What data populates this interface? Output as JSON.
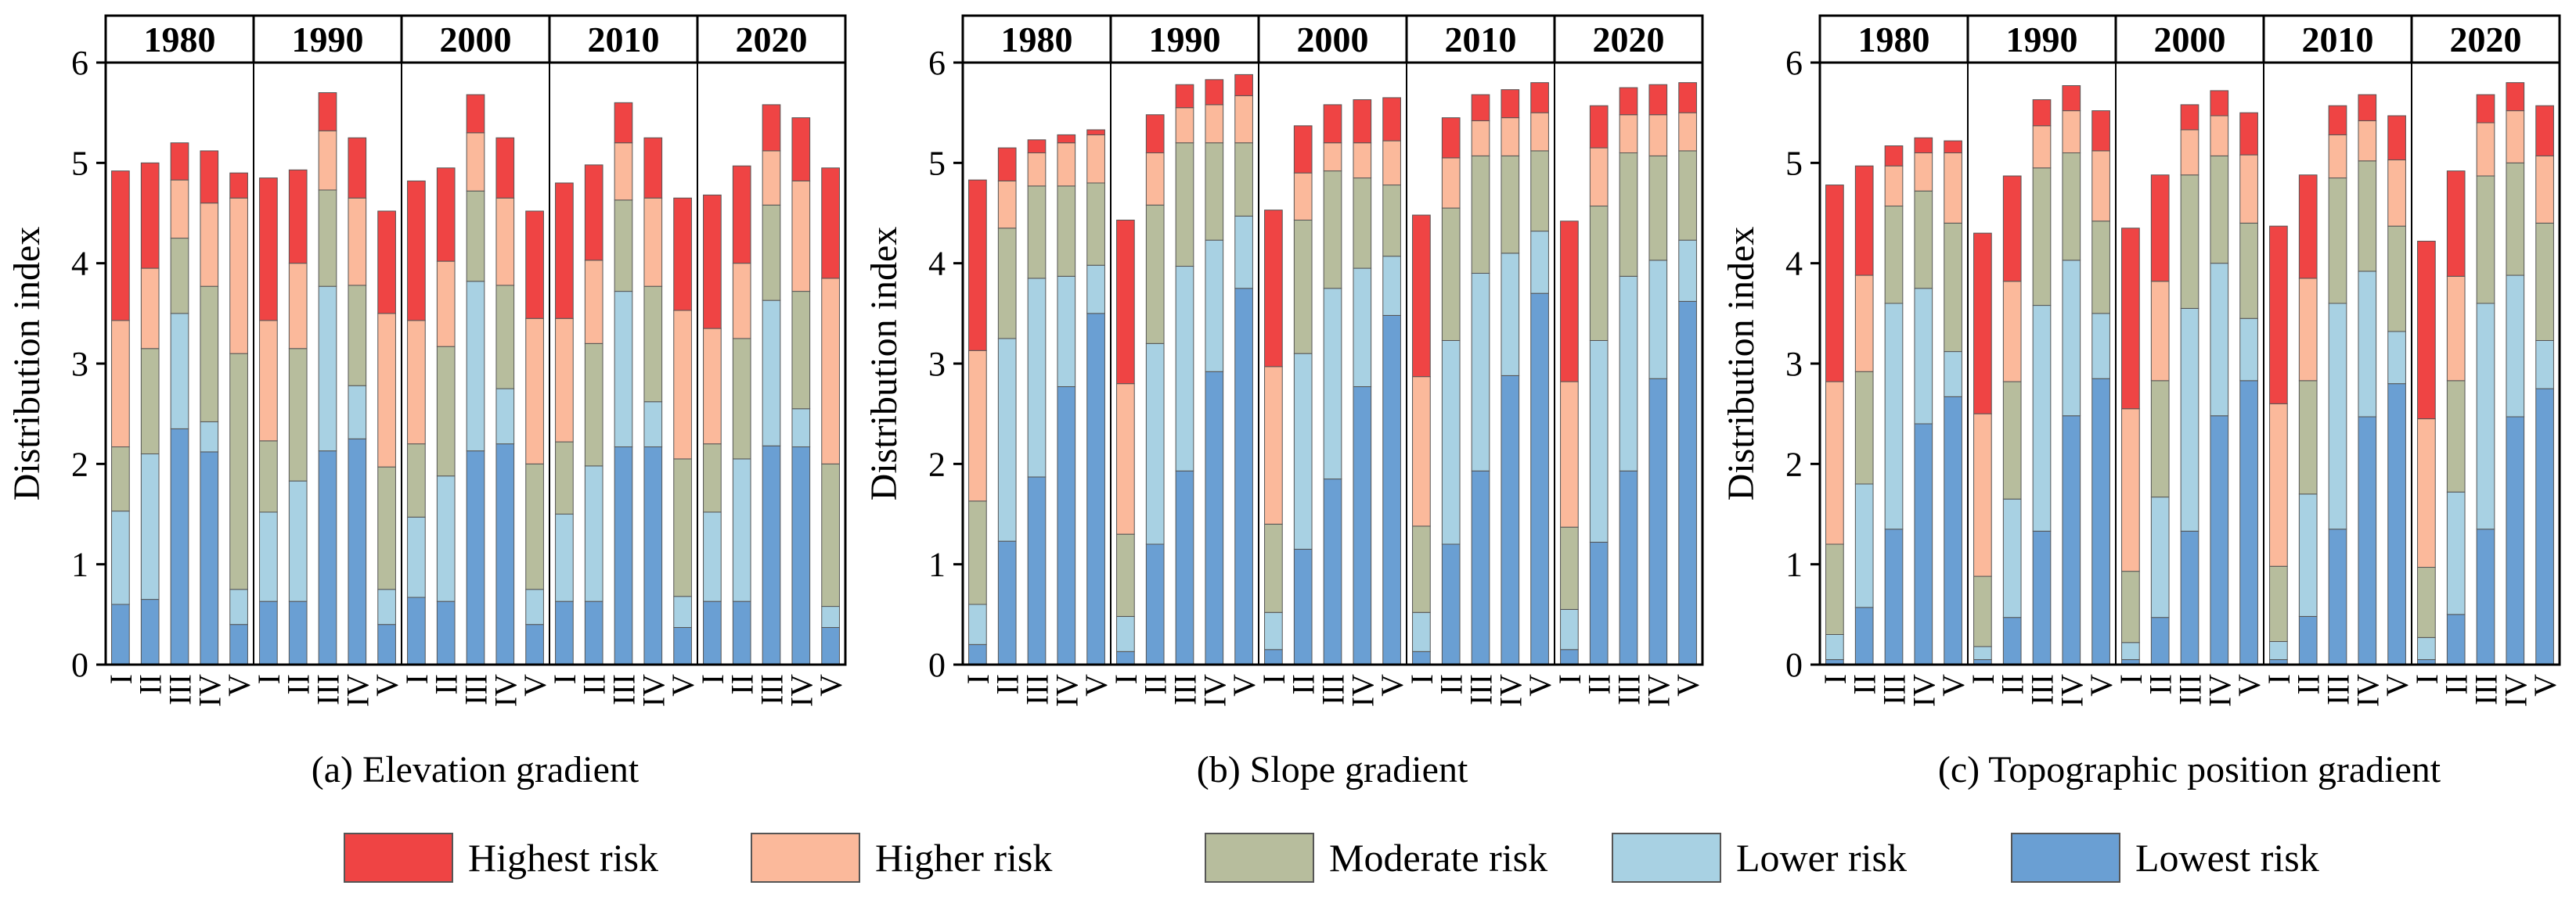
{
  "legend": [
    {
      "key": "highest",
      "label": "Highest risk",
      "color": "#ef4444"
    },
    {
      "key": "higher",
      "label": "Higher risk",
      "color": "#fbb99b"
    },
    {
      "key": "moderate",
      "label": "Moderate risk",
      "color": "#b7bd9d"
    },
    {
      "key": "lower",
      "label": "Lower risk",
      "color": "#a8d1e3"
    },
    {
      "key": "lowest",
      "label": "Lowest risk",
      "color": "#6a9fd3"
    }
  ],
  "chart_data": [
    {
      "type": "bar",
      "stacked": true,
      "caption": "(a) Elevation gradient",
      "ylabel": "Distribution index",
      "ylim": [
        0,
        6
      ],
      "yticks": [
        0,
        1,
        2,
        3,
        4,
        5,
        6
      ],
      "years": [
        "1980",
        "1990",
        "2000",
        "2010",
        "2020"
      ],
      "categories": [
        "I",
        "II",
        "III",
        "IV",
        "V"
      ],
      "series_order": [
        "lowest",
        "lower",
        "moderate",
        "higher",
        "highest"
      ],
      "panels": [
        {
          "year": "1980",
          "totals": [
            4.92,
            5.0,
            5.2,
            5.12,
            4.9
          ],
          "cum": [
            [
              0.6,
              1.53,
              2.17,
              3.43,
              4.92
            ],
            [
              0.65,
              2.1,
              3.15,
              3.95,
              5.0
            ],
            [
              2.35,
              3.5,
              4.25,
              4.83,
              5.2
            ],
            [
              2.12,
              2.42,
              3.77,
              4.6,
              5.12
            ],
            [
              0.4,
              0.75,
              3.1,
              4.65,
              4.9
            ]
          ]
        },
        {
          "year": "1990",
          "totals": [
            4.85,
            4.93,
            5.7,
            5.25,
            4.52
          ],
          "cum": [
            [
              0.63,
              1.52,
              2.23,
              3.43,
              4.85
            ],
            [
              0.63,
              1.83,
              3.15,
              4.0,
              4.93
            ],
            [
              2.13,
              3.77,
              4.73,
              5.32,
              5.7
            ],
            [
              2.25,
              2.78,
              3.78,
              4.65,
              5.25
            ],
            [
              0.4,
              0.75,
              1.97,
              3.5,
              4.52
            ]
          ]
        },
        {
          "year": "2000",
          "totals": [
            4.82,
            4.95,
            5.68,
            5.25,
            4.52
          ],
          "cum": [
            [
              0.67,
              1.47,
              2.2,
              3.43,
              4.82
            ],
            [
              0.63,
              1.88,
              3.17,
              4.02,
              4.95
            ],
            [
              2.13,
              3.82,
              4.72,
              5.3,
              5.68
            ],
            [
              2.2,
              2.75,
              3.78,
              4.65,
              5.25
            ],
            [
              0.4,
              0.75,
              2.0,
              3.45,
              4.52
            ]
          ]
        },
        {
          "year": "2010",
          "totals": [
            4.8,
            4.98,
            5.6,
            5.25,
            4.65
          ],
          "cum": [
            [
              0.63,
              1.5,
              2.22,
              3.45,
              4.8
            ],
            [
              0.63,
              1.98,
              3.2,
              4.03,
              4.98
            ],
            [
              2.17,
              3.72,
              4.63,
              5.2,
              5.6
            ],
            [
              2.17,
              2.62,
              3.77,
              4.65,
              5.25
            ],
            [
              0.37,
              0.68,
              2.05,
              3.53,
              4.65
            ]
          ]
        },
        {
          "year": "2020",
          "totals": [
            4.68,
            4.97,
            5.58,
            5.45,
            4.95
          ],
          "cum": [
            [
              0.63,
              1.52,
              2.2,
              3.35,
              4.68
            ],
            [
              0.63,
              2.05,
              3.25,
              4.0,
              4.97
            ],
            [
              2.18,
              3.63,
              4.58,
              5.12,
              5.58
            ],
            [
              2.17,
              2.55,
              3.72,
              4.82,
              5.45
            ],
            [
              0.37,
              0.58,
              2.0,
              3.85,
              4.95
            ]
          ]
        }
      ]
    },
    {
      "type": "bar",
      "stacked": true,
      "caption": "(b) Slope gradient",
      "ylabel": "Distribution index",
      "ylim": [
        0,
        6
      ],
      "yticks": [
        0,
        1,
        2,
        3,
        4,
        5,
        6
      ],
      "years": [
        "1980",
        "1990",
        "2000",
        "2010",
        "2020"
      ],
      "categories": [
        "I",
        "II",
        "III",
        "IV",
        "V"
      ],
      "series_order": [
        "lowest",
        "lower",
        "moderate",
        "higher",
        "highest"
      ],
      "panels": [
        {
          "year": "1980",
          "totals": [
            4.83,
            5.15,
            5.23,
            5.28,
            5.33
          ],
          "cum": [
            [
              0.2,
              0.6,
              1.63,
              3.13,
              4.83
            ],
            [
              1.23,
              3.25,
              4.35,
              4.82,
              5.15
            ],
            [
              1.87,
              3.85,
              4.77,
              5.1,
              5.23
            ],
            [
              2.77,
              3.87,
              4.77,
              5.2,
              5.28
            ],
            [
              3.5,
              3.98,
              4.8,
              5.28,
              5.33
            ]
          ]
        },
        {
          "year": "1990",
          "totals": [
            4.43,
            5.48,
            5.78,
            5.83,
            5.88
          ],
          "cum": [
            [
              0.13,
              0.48,
              1.3,
              2.8,
              4.43
            ],
            [
              1.2,
              3.2,
              4.58,
              5.1,
              5.48
            ],
            [
              1.93,
              3.97,
              5.2,
              5.55,
              5.78
            ],
            [
              2.92,
              4.23,
              5.2,
              5.58,
              5.83
            ],
            [
              3.75,
              4.47,
              5.2,
              5.67,
              5.88
            ]
          ]
        },
        {
          "year": "2000",
          "totals": [
            4.53,
            5.37,
            5.58,
            5.63,
            5.65
          ],
          "cum": [
            [
              0.15,
              0.52,
              1.4,
              2.97,
              4.53
            ],
            [
              1.15,
              3.1,
              4.43,
              4.9,
              5.37
            ],
            [
              1.85,
              3.75,
              4.92,
              5.2,
              5.58
            ],
            [
              2.77,
              3.95,
              4.85,
              5.2,
              5.63
            ],
            [
              3.48,
              4.07,
              4.78,
              5.22,
              5.65
            ]
          ]
        },
        {
          "year": "2010",
          "totals": [
            4.48,
            5.45,
            5.68,
            5.73,
            5.8
          ],
          "cum": [
            [
              0.13,
              0.52,
              1.38,
              2.87,
              4.48
            ],
            [
              1.2,
              3.23,
              4.55,
              5.05,
              5.45
            ],
            [
              1.93,
              3.9,
              5.07,
              5.42,
              5.68
            ],
            [
              2.88,
              4.1,
              5.07,
              5.45,
              5.73
            ],
            [
              3.7,
              4.32,
              5.12,
              5.5,
              5.8
            ]
          ]
        },
        {
          "year": "2020",
          "totals": [
            4.42,
            5.57,
            5.75,
            5.78,
            5.8
          ],
          "cum": [
            [
              0.15,
              0.55,
              1.37,
              2.82,
              4.42
            ],
            [
              1.22,
              3.23,
              4.57,
              5.15,
              5.57
            ],
            [
              1.93,
              3.87,
              5.1,
              5.48,
              5.75
            ],
            [
              2.85,
              4.03,
              5.07,
              5.48,
              5.78
            ],
            [
              3.62,
              4.23,
              5.12,
              5.5,
              5.8
            ]
          ]
        }
      ]
    },
    {
      "type": "bar",
      "stacked": true,
      "caption": "(c) Topographic position gradient",
      "ylabel": "Distribution index",
      "ylim": [
        0,
        6
      ],
      "yticks": [
        0,
        1,
        2,
        3,
        4,
        5,
        6
      ],
      "years": [
        "1980",
        "1990",
        "2000",
        "2010",
        "2020"
      ],
      "categories": [
        "I",
        "II",
        "III",
        "IV",
        "V"
      ],
      "series_order": [
        "lowest",
        "lower",
        "moderate",
        "higher",
        "highest"
      ],
      "panels": [
        {
          "year": "1980",
          "totals": [
            4.78,
            4.97,
            5.17,
            5.25,
            5.22
          ],
          "cum": [
            [
              0.05,
              0.3,
              1.2,
              2.82,
              4.78
            ],
            [
              0.57,
              1.8,
              2.92,
              3.88,
              4.97
            ],
            [
              1.35,
              3.6,
              4.57,
              4.97,
              5.17
            ],
            [
              2.4,
              3.75,
              4.72,
              5.1,
              5.25
            ],
            [
              2.67,
              3.12,
              4.4,
              5.1,
              5.22
            ]
          ]
        },
        {
          "year": "1990",
          "totals": [
            4.3,
            4.87,
            5.63,
            5.77,
            5.52
          ],
          "cum": [
            [
              0.05,
              0.18,
              0.88,
              2.5,
              4.3
            ],
            [
              0.47,
              1.65,
              2.82,
              3.82,
              4.87
            ],
            [
              1.33,
              3.58,
              4.95,
              5.37,
              5.63
            ],
            [
              2.48,
              4.03,
              5.1,
              5.52,
              5.77
            ],
            [
              2.85,
              3.5,
              4.42,
              5.12,
              5.52
            ]
          ]
        },
        {
          "year": "2000",
          "totals": [
            4.35,
            4.88,
            5.58,
            5.72,
            5.5
          ],
          "cum": [
            [
              0.05,
              0.22,
              0.93,
              2.55,
              4.35
            ],
            [
              0.47,
              1.67,
              2.83,
              3.82,
              4.88
            ],
            [
              1.33,
              3.55,
              4.88,
              5.33,
              5.58
            ],
            [
              2.48,
              4.0,
              5.07,
              5.47,
              5.72
            ],
            [
              2.83,
              3.45,
              4.4,
              5.08,
              5.5
            ]
          ]
        },
        {
          "year": "2010",
          "totals": [
            4.37,
            4.88,
            5.57,
            5.68,
            5.47
          ],
          "cum": [
            [
              0.05,
              0.23,
              0.98,
              2.6,
              4.37
            ],
            [
              0.48,
              1.7,
              2.83,
              3.85,
              4.88
            ],
            [
              1.35,
              3.6,
              4.85,
              5.28,
              5.57
            ],
            [
              2.47,
              3.92,
              5.02,
              5.42,
              5.68
            ],
            [
              2.8,
              3.32,
              4.37,
              5.03,
              5.47
            ]
          ]
        },
        {
          "year": "2020",
          "totals": [
            4.22,
            4.92,
            5.68,
            5.8,
            5.57
          ],
          "cum": [
            [
              0.05,
              0.27,
              0.97,
              2.45,
              4.22
            ],
            [
              0.5,
              1.72,
              2.83,
              3.87,
              4.92
            ],
            [
              1.35,
              3.6,
              4.87,
              5.4,
              5.68
            ],
            [
              2.47,
              3.88,
              5.0,
              5.52,
              5.8
            ],
            [
              2.75,
              3.23,
              4.4,
              5.07,
              5.57
            ]
          ]
        }
      ]
    }
  ]
}
